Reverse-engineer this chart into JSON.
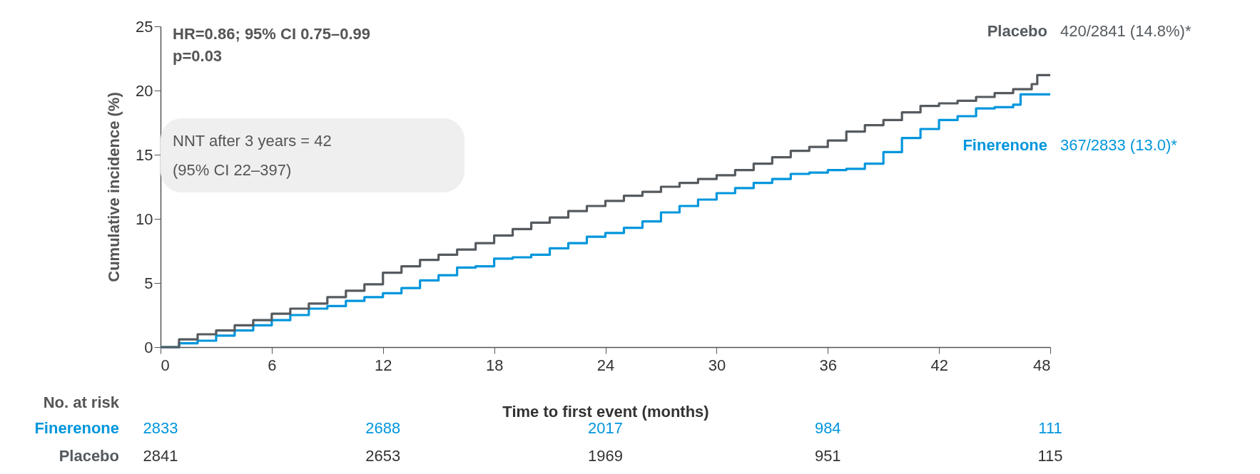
{
  "chart_data": {
    "type": "step",
    "xlabel": "Time to first event (months)",
    "ylabel": "Cumulative incidence (%)",
    "xlim": [
      0,
      48
    ],
    "xticks": [
      0,
      6,
      12,
      18,
      24,
      30,
      36,
      42,
      48
    ],
    "ylim": [
      0,
      25
    ],
    "yticks": [
      0,
      5,
      10,
      15,
      20,
      25
    ],
    "grid": false,
    "series": [
      {
        "name": "Finerenone",
        "color": "#0096dc",
        "x": [
          0,
          1,
          2,
          3,
          4,
          5,
          6,
          7,
          8,
          9,
          10,
          11,
          12,
          13,
          14,
          15,
          16,
          17,
          18,
          19,
          20,
          21,
          22,
          23,
          24,
          25,
          26,
          27,
          28,
          29,
          30,
          31,
          32,
          33,
          34,
          35,
          36,
          37,
          38,
          39,
          40,
          41,
          42,
          43,
          44,
          45,
          46,
          46.4,
          48
        ],
        "values": [
          0,
          0.3,
          0.5,
          0.9,
          1.3,
          1.7,
          2.1,
          2.5,
          3.0,
          3.2,
          3.6,
          3.9,
          4.2,
          4.6,
          5.2,
          5.6,
          6.2,
          6.3,
          6.9,
          7.0,
          7.2,
          7.7,
          8.1,
          8.6,
          8.9,
          9.3,
          9.8,
          10.5,
          11.0,
          11.5,
          12.0,
          12.4,
          12.8,
          13.1,
          13.5,
          13.6,
          13.8,
          13.9,
          14.3,
          15.2,
          16.3,
          17.0,
          17.7,
          18.0,
          18.6,
          18.7,
          18.9,
          19.7,
          19.7
        ]
      },
      {
        "name": "Placebo",
        "color": "#555a5f",
        "x": [
          0,
          1,
          2,
          3,
          4,
          5,
          6,
          7,
          8,
          9,
          10,
          11,
          12,
          13,
          14,
          15,
          16,
          17,
          18,
          19,
          20,
          21,
          22,
          23,
          24,
          25,
          26,
          27,
          28,
          29,
          30,
          31,
          32,
          33,
          34,
          35,
          36,
          37,
          38,
          39,
          40,
          41,
          42,
          43,
          44,
          45,
          46,
          47,
          47.3,
          48
        ],
        "values": [
          0,
          0.6,
          1.0,
          1.3,
          1.7,
          2.1,
          2.6,
          3.0,
          3.4,
          3.9,
          4.4,
          4.9,
          5.8,
          6.3,
          6.8,
          7.2,
          7.6,
          8.1,
          8.7,
          9.2,
          9.7,
          10.1,
          10.6,
          11.0,
          11.4,
          11.8,
          12.1,
          12.5,
          12.8,
          13.1,
          13.4,
          13.8,
          14.3,
          14.8,
          15.3,
          15.6,
          16.1,
          16.8,
          17.3,
          17.7,
          18.3,
          18.8,
          19.0,
          19.2,
          19.5,
          19.8,
          20.1,
          20.5,
          21.2,
          21.2
        ]
      }
    ],
    "annotations": [
      "HR=0.86; 95% CI 0.75–0.99",
      "p=0.03",
      "NNT after 3 years = 42",
      "(95% CI 22–397)",
      "No. at risk",
      "367/2833 (13.0)*",
      "420/2841 (14.8%)*",
      "2833",
      "2688",
      "2017",
      "984",
      "111",
      "2841",
      "2653",
      "1969",
      "951",
      "115"
    ]
  }
}
